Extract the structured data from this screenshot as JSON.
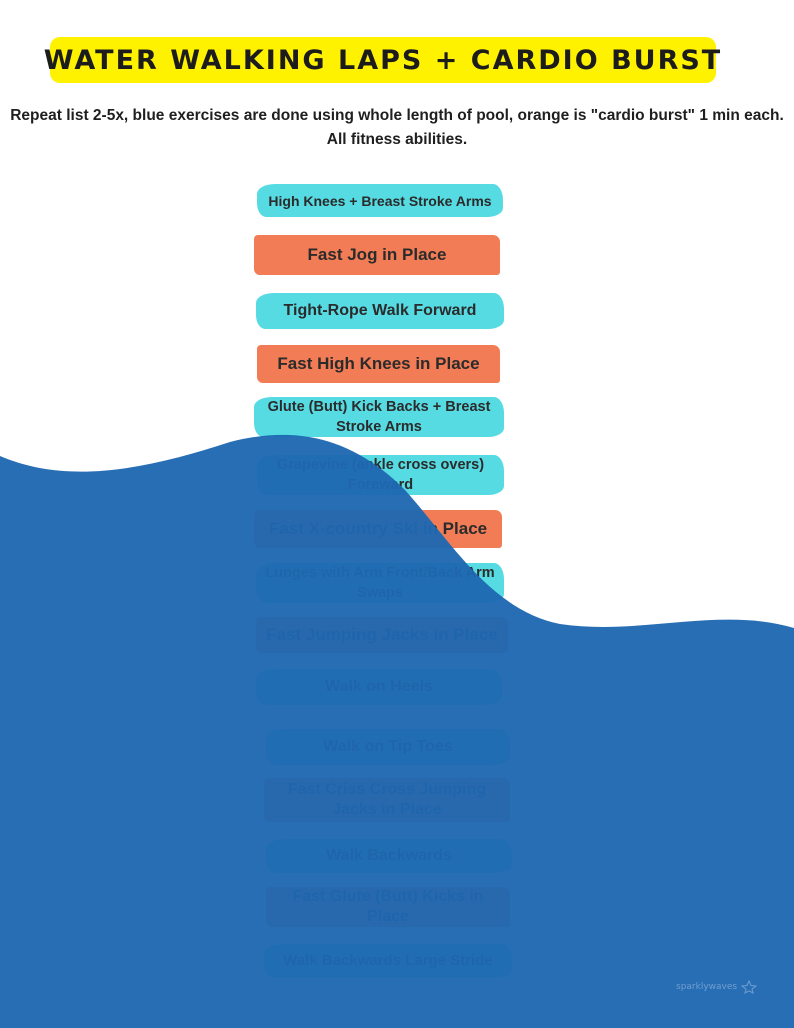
{
  "title": "WATER WALKING LAPS + CARDIO BURST",
  "subtitle": "Repeat list 2-5x, blue exercises are done using whole length of pool, orange is \"cardio burst\" 1 min each. All fitness abilities.",
  "colors": {
    "title_highlight": "#fff200",
    "blue_exercise": "#56dbe3",
    "orange_exercise": "#f27c55",
    "water": "#1f68b2"
  },
  "exercises": [
    {
      "text": "High Knees + Breast Stroke Arms",
      "type": "blue"
    },
    {
      "text": "Fast Jog  in Place",
      "type": "orange"
    },
    {
      "text": "Tight-Rope Walk Forward",
      "type": "blue"
    },
    {
      "text": "Fast High Knees  in Place",
      "type": "orange"
    },
    {
      "text": "Glute  (Butt) Kick Backs + Breast Stroke Arms",
      "type": "blue"
    },
    {
      "text": "Grapevine (ankle  cross overs) Foreward",
      "type": "blue"
    },
    {
      "text": "Fast X-country Ski  in Place",
      "type": "orange"
    },
    {
      "text": "Lunges with Arm Front/Back Arm Swaps",
      "type": "blue"
    },
    {
      "text": "Fast Jumping Jacks  in Place",
      "type": "orange"
    },
    {
      "text": "Walk on Heels",
      "type": "blue"
    },
    {
      "text": "Walk on Tip Toes",
      "type": "blue"
    },
    {
      "text": "Fast Criss Cross Jumping Jacks  in Place",
      "type": "orange"
    },
    {
      "text": "Walk Backwards",
      "type": "blue"
    },
    {
      "text": "Fast Glute (Butt) Kicks  in Place",
      "type": "orange"
    },
    {
      "text": "Walk Backwards Large Stride",
      "type": "blue"
    }
  ],
  "brand": {
    "text": "sparklywaves",
    "icon": "star-icon"
  }
}
